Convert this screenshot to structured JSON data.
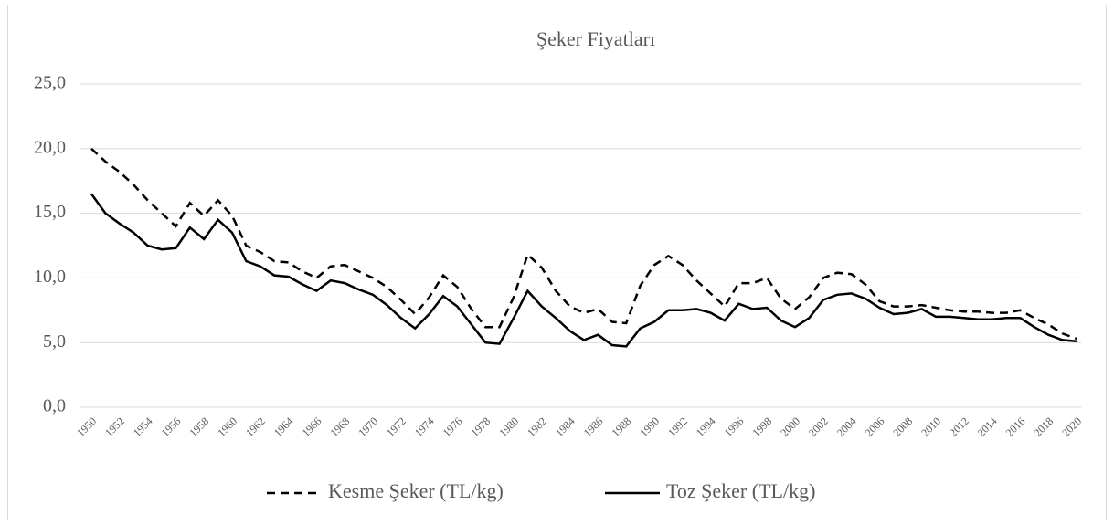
{
  "chart_data": {
    "type": "line",
    "title": "Şeker Fiyatları",
    "categories": [
      "1950",
      null,
      "1952",
      null,
      "1954",
      null,
      "1956",
      null,
      "1958",
      null,
      "1960",
      null,
      "1962",
      null,
      "1964",
      null,
      "1966",
      null,
      "1968",
      null,
      "1970",
      null,
      "1972",
      null,
      "1974",
      null,
      "1976",
      null,
      "1978",
      null,
      "1980",
      null,
      "1982",
      null,
      "1984",
      null,
      "1986",
      null,
      "1988",
      null,
      "1990",
      null,
      "1992",
      null,
      "1994",
      null,
      "1996",
      null,
      "1998",
      null,
      "2000",
      null,
      "2002",
      null,
      "2004",
      null,
      "2006",
      null,
      "2008",
      null,
      "2010",
      null,
      "2012",
      null,
      "2014",
      null,
      "2016",
      null,
      "2018",
      null,
      "2020"
    ],
    "series": [
      {
        "name": "Kesme Şeker (TL/kg)",
        "color": "#000000",
        "dash": true,
        "values": [
          20.0,
          19.0,
          18.2,
          17.2,
          16.0,
          15.0,
          14.0,
          15.8,
          14.8,
          16.0,
          14.8,
          12.5,
          12.0,
          11.3,
          11.2,
          10.5,
          10.0,
          10.9,
          11.0,
          10.5,
          10.0,
          9.3,
          8.3,
          7.2,
          8.5,
          10.2,
          9.3,
          7.6,
          6.2,
          6.2,
          8.5,
          11.8,
          10.8,
          9.0,
          7.8,
          7.3,
          7.6,
          6.6,
          6.5,
          9.4,
          11.0,
          11.7,
          11.0,
          9.8,
          8.8,
          7.8,
          9.6,
          9.6,
          10.0,
          8.4,
          7.6,
          8.5,
          10.0,
          10.4,
          10.3,
          9.5,
          8.2,
          7.8,
          7.8,
          7.9,
          7.7,
          7.5,
          7.4,
          7.4,
          7.3,
          7.3,
          7.5,
          6.9,
          6.4,
          5.7,
          5.3
        ]
      },
      {
        "name": "Toz Şeker (TL/kg)",
        "color": "#000000",
        "dash": false,
        "values": [
          16.5,
          15.0,
          14.2,
          13.5,
          12.5,
          12.2,
          12.3,
          13.9,
          13.0,
          14.5,
          13.5,
          11.3,
          10.9,
          10.2,
          10.1,
          9.5,
          9.0,
          9.8,
          9.6,
          9.1,
          8.7,
          7.9,
          6.9,
          6.1,
          7.2,
          8.6,
          7.8,
          6.4,
          5.0,
          4.9,
          6.9,
          9.0,
          7.8,
          6.9,
          5.9,
          5.2,
          5.6,
          4.8,
          4.7,
          6.1,
          6.6,
          7.5,
          7.5,
          7.6,
          7.3,
          6.7,
          8.0,
          7.6,
          7.7,
          6.7,
          6.2,
          6.9,
          8.3,
          8.7,
          8.8,
          8.4,
          7.7,
          7.2,
          7.3,
          7.6,
          7.0,
          7.0,
          6.9,
          6.8,
          6.8,
          6.9,
          6.9,
          6.2,
          5.6,
          5.2,
          5.1
        ]
      }
    ],
    "ylim": [
      0,
      25
    ],
    "yticks": [
      {
        "value": 0,
        "label": "0,0"
      },
      {
        "value": 5,
        "label": "5,0"
      },
      {
        "value": 10,
        "label": "10,0"
      },
      {
        "value": 15,
        "label": "15,0"
      },
      {
        "value": 20,
        "label": "20,0"
      },
      {
        "value": 25,
        "label": "25,0"
      }
    ],
    "grid": true,
    "legend": "bottom"
  }
}
